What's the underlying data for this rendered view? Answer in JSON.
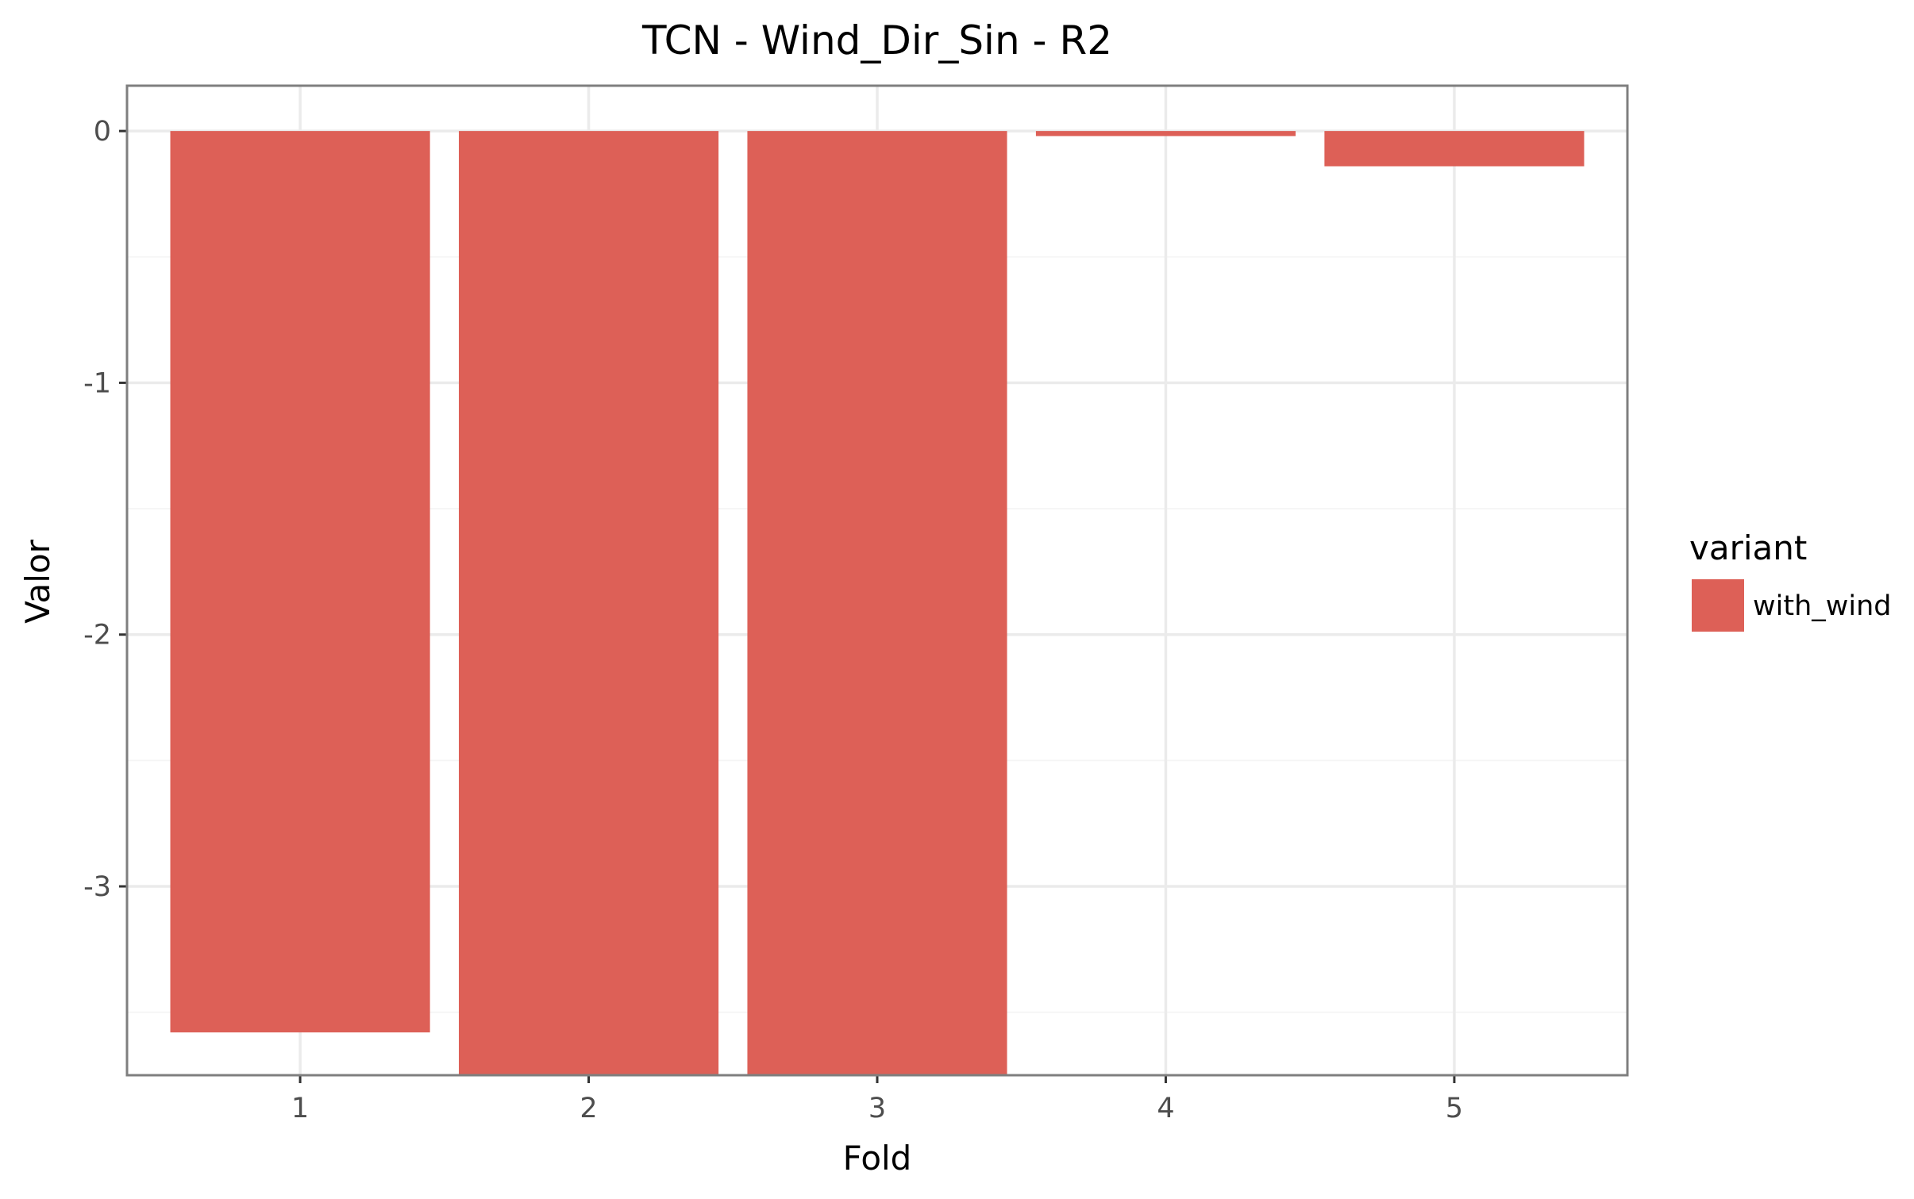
{
  "chart_data": {
    "type": "bar",
    "title": "TCN - Wind_Dir_Sin - R2",
    "xlabel": "Fold",
    "ylabel": "Valor",
    "categories": [
      "1",
      "2",
      "3",
      "4",
      "5"
    ],
    "series": [
      {
        "name": "with_wind",
        "color": "#dd6057",
        "values": [
          -3.58,
          -3.9,
          -3.9,
          -0.02,
          -0.14
        ]
      }
    ],
    "ylim": [
      -3.75,
      0.18
    ],
    "yticks": [
      0,
      -1,
      -2,
      -3
    ],
    "ytick_labels": [
      "0",
      "-1",
      "-2",
      "-3"
    ],
    "grid": true,
    "legend": {
      "title": "variant",
      "position": "right"
    }
  }
}
